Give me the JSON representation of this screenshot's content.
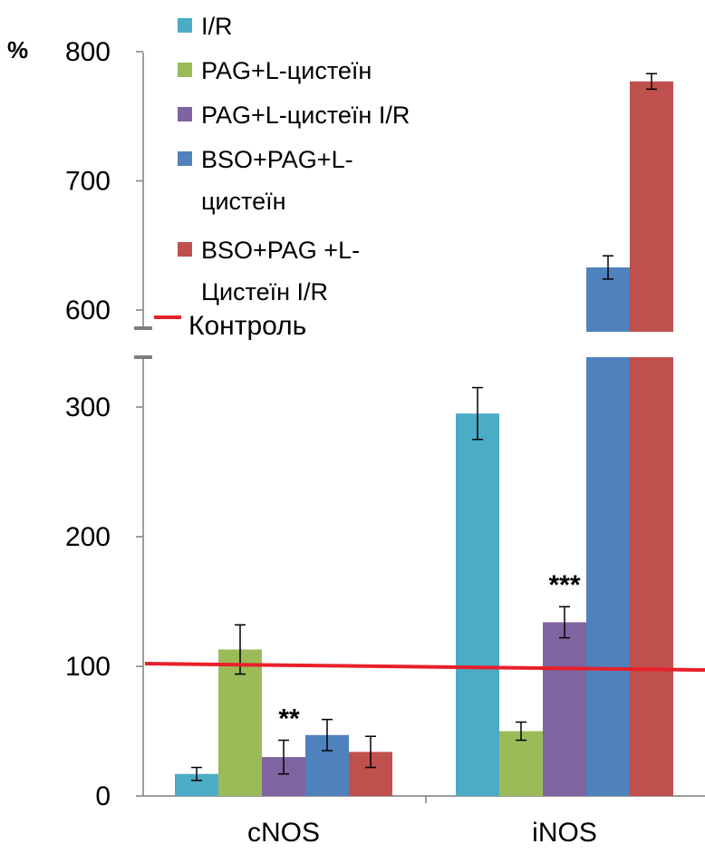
{
  "chart_data": {
    "type": "bar",
    "y_unit_label": "%",
    "categories": [
      "cNOS",
      "iNOS"
    ],
    "y_axis_broken": true,
    "y_break_range": [
      350,
      590
    ],
    "y_ticks_lower": [
      0,
      100,
      200,
      300
    ],
    "y_ticks_upper": [
      600,
      700,
      800
    ],
    "series": [
      {
        "name": "I/R",
        "color": "#4BACC6",
        "values": [
          17,
          295
        ],
        "errors": [
          5,
          20
        ]
      },
      {
        "name": "PAG+L-цистеїн",
        "color": "#9BBB59",
        "values": [
          113,
          50
        ],
        "errors": [
          19,
          7
        ]
      },
      {
        "name": "PAG+L-цистеїн I/R",
        "color": "#8064A2",
        "values": [
          30,
          134
        ],
        "errors": [
          13,
          12
        ]
      },
      {
        "name_lines": [
          "BSO+PAG+L-",
          "цистеїн"
        ],
        "color": "#4F81BD",
        "values": [
          47,
          633
        ],
        "errors": [
          12,
          9
        ]
      },
      {
        "name_lines": [
          "BSO+PAG +L-",
          "Цистеїн I/R"
        ],
        "color": "#C0504D",
        "values": [
          34,
          777
        ],
        "errors": [
          12,
          6
        ]
      }
    ],
    "control": {
      "name": "Контроль",
      "value": 100,
      "color": "#E8202A"
    },
    "annotations": [
      {
        "text": "**",
        "category": "cNOS",
        "series_index": 2
      },
      {
        "text": "***",
        "category": "iNOS",
        "series_index": 2
      }
    ]
  }
}
